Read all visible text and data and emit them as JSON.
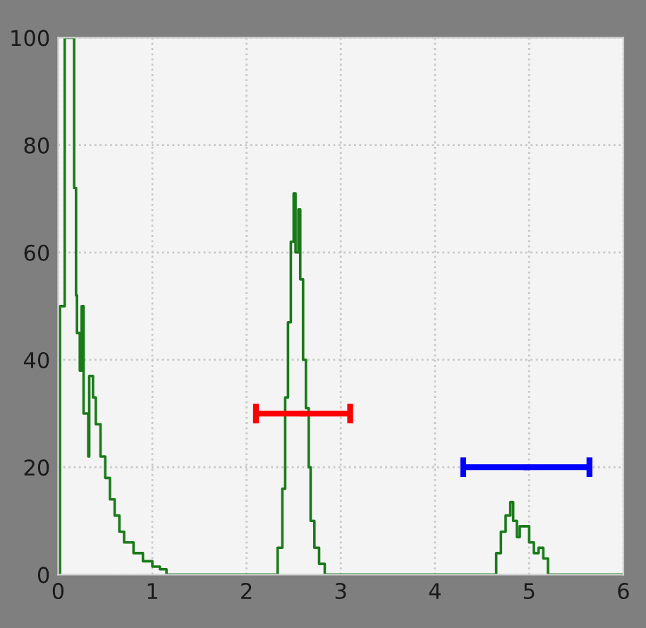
{
  "chart_data": {
    "type": "step",
    "xlim": [
      0,
      6
    ],
    "ylim": [
      0,
      100
    ],
    "xticks": [
      0,
      1,
      2,
      3,
      4,
      5,
      6
    ],
    "yticks": [
      0,
      20,
      40,
      60,
      80,
      100
    ],
    "grid": true,
    "legend": false,
    "marker": "none",
    "series": [
      {
        "color": "#1a7a1a",
        "x": [
          0,
          0.02,
          0.07,
          0.14,
          0.17,
          0.19,
          0.2,
          0.23,
          0.25,
          0.27,
          0.32,
          0.33,
          0.37,
          0.4,
          0.45,
          0.5,
          0.55,
          0.6,
          0.65,
          0.7,
          0.8,
          0.9,
          1.0,
          1.08,
          1.15,
          2.31,
          2.33,
          2.38,
          2.41,
          2.44,
          2.47,
          2.5,
          2.52,
          2.55,
          2.57,
          2.6,
          2.63,
          2.66,
          2.68,
          2.72,
          2.77,
          2.83,
          4.6,
          4.65,
          4.7,
          4.75,
          4.8,
          4.83,
          4.87,
          4.9,
          4.95,
          5.0,
          5.05,
          5.1,
          5.15,
          5.2,
          6
        ],
        "values": [
          0,
          50,
          100,
          100,
          72,
          52,
          45,
          38,
          50,
          30,
          22,
          37,
          33,
          28,
          22,
          18,
          14,
          11,
          8,
          6,
          4,
          2.5,
          1.5,
          1,
          0,
          0,
          5,
          16,
          33,
          47,
          62,
          71,
          60,
          68,
          55,
          40,
          31,
          20,
          10,
          5,
          2,
          0,
          0,
          4,
          8,
          11,
          13.5,
          10,
          7,
          9,
          9,
          6,
          4,
          5,
          3,
          0,
          0
        ]
      },
      {
        "type": "scatter",
        "marker": "square",
        "color": "#ff0000",
        "x": [
          2.6
        ],
        "values": [
          30
        ],
        "xerrors": [
          0.5
        ]
      },
      {
        "type": "scatter",
        "marker": "square",
        "color": "#0000ff",
        "x": [
          4.97
        ],
        "values": [
          20
        ],
        "xerrors": [
          0.67
        ]
      }
    ]
  }
}
